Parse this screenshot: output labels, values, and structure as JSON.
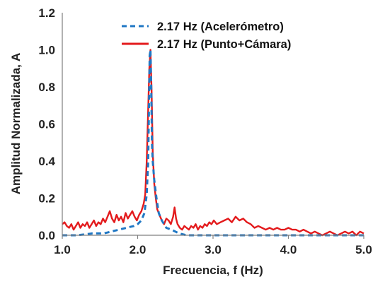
{
  "chart_data": {
    "type": "line",
    "title": "",
    "xlabel": "Frecuencia, f (Hz)",
    "ylabel": "Amplitud Normalizada, A",
    "xlim": [
      1.0,
      5.0
    ],
    "ylim": [
      0.0,
      1.2
    ],
    "xticks": [
      "1.0",
      "2.0",
      "3.0",
      "4.0",
      "5.0"
    ],
    "yticks": [
      "0.0",
      "0.2",
      "0.4",
      "0.6",
      "0.8",
      "1.0",
      "1.2"
    ],
    "grid": false,
    "legend_position": "top-right",
    "series": [
      {
        "name": "2.17 Hz (Acelerómetro)",
        "color": "#1f77c4",
        "style": "dashed",
        "x": [
          1.0,
          1.2,
          1.4,
          1.55,
          1.65,
          1.75,
          1.85,
          1.95,
          2.0,
          2.05,
          2.09,
          2.12,
          2.14,
          2.15,
          2.16,
          2.17,
          2.18,
          2.19,
          2.2,
          2.22,
          2.25,
          2.28,
          2.32,
          2.38,
          2.45,
          2.5,
          2.55,
          2.65,
          3.0,
          4.0,
          5.0
        ],
        "y": [
          0.0,
          0.0,
          0.01,
          0.01,
          0.02,
          0.03,
          0.04,
          0.05,
          0.06,
          0.08,
          0.12,
          0.22,
          0.4,
          0.7,
          0.97,
          1.0,
          0.8,
          0.5,
          0.4,
          0.3,
          0.2,
          0.12,
          0.08,
          0.04,
          0.03,
          0.02,
          0.01,
          0.0,
          0.0,
          0.0,
          0.0
        ]
      },
      {
        "name": "2.17 Hz (Punto+Cámara)",
        "color": "#e31a1c",
        "style": "solid",
        "x": [
          1.0,
          1.03,
          1.06,
          1.09,
          1.12,
          1.15,
          1.18,
          1.21,
          1.24,
          1.27,
          1.3,
          1.33,
          1.36,
          1.39,
          1.42,
          1.45,
          1.48,
          1.51,
          1.54,
          1.57,
          1.6,
          1.63,
          1.66,
          1.69,
          1.72,
          1.75,
          1.78,
          1.81,
          1.84,
          1.87,
          1.9,
          1.93,
          1.96,
          1.99,
          2.02,
          2.05,
          2.08,
          2.1,
          2.12,
          2.14,
          2.155,
          2.17,
          2.185,
          2.2,
          2.22,
          2.24,
          2.26,
          2.28,
          2.3,
          2.32,
          2.35,
          2.38,
          2.41,
          2.44,
          2.47,
          2.49,
          2.51,
          2.53,
          2.56,
          2.59,
          2.62,
          2.65,
          2.68,
          2.71,
          2.74,
          2.77,
          2.8,
          2.83,
          2.86,
          2.89,
          2.92,
          2.95,
          2.98,
          3.01,
          3.05,
          3.1,
          3.15,
          3.2,
          3.25,
          3.3,
          3.35,
          3.4,
          3.45,
          3.5,
          3.55,
          3.6,
          3.65,
          3.7,
          3.75,
          3.8,
          3.85,
          3.9,
          3.95,
          4.0,
          4.05,
          4.1,
          4.15,
          4.2,
          4.25,
          4.3,
          4.35,
          4.4,
          4.45,
          4.5,
          4.55,
          4.6,
          4.65,
          4.7,
          4.75,
          4.8,
          4.85,
          4.9,
          4.95,
          5.0
        ],
        "y": [
          0.06,
          0.07,
          0.05,
          0.04,
          0.06,
          0.03,
          0.05,
          0.07,
          0.04,
          0.06,
          0.05,
          0.07,
          0.04,
          0.06,
          0.08,
          0.05,
          0.07,
          0.06,
          0.09,
          0.07,
          0.1,
          0.13,
          0.09,
          0.07,
          0.11,
          0.08,
          0.1,
          0.07,
          0.12,
          0.09,
          0.11,
          0.13,
          0.1,
          0.08,
          0.11,
          0.13,
          0.17,
          0.22,
          0.4,
          0.68,
          0.9,
          1.0,
          0.78,
          0.45,
          0.28,
          0.2,
          0.14,
          0.12,
          0.1,
          0.08,
          0.06,
          0.09,
          0.08,
          0.06,
          0.1,
          0.15,
          0.09,
          0.06,
          0.04,
          0.03,
          0.05,
          0.04,
          0.03,
          0.05,
          0.04,
          0.06,
          0.03,
          0.05,
          0.04,
          0.06,
          0.05,
          0.07,
          0.06,
          0.08,
          0.06,
          0.07,
          0.08,
          0.09,
          0.07,
          0.1,
          0.08,
          0.09,
          0.07,
          0.06,
          0.04,
          0.05,
          0.04,
          0.03,
          0.04,
          0.03,
          0.04,
          0.03,
          0.03,
          0.04,
          0.03,
          0.03,
          0.02,
          0.03,
          0.02,
          0.01,
          0.02,
          0.01,
          0.0,
          0.01,
          0.02,
          0.01,
          0.0,
          0.01,
          0.02,
          0.01,
          0.02,
          0.0,
          0.02,
          0.01
        ]
      }
    ]
  }
}
